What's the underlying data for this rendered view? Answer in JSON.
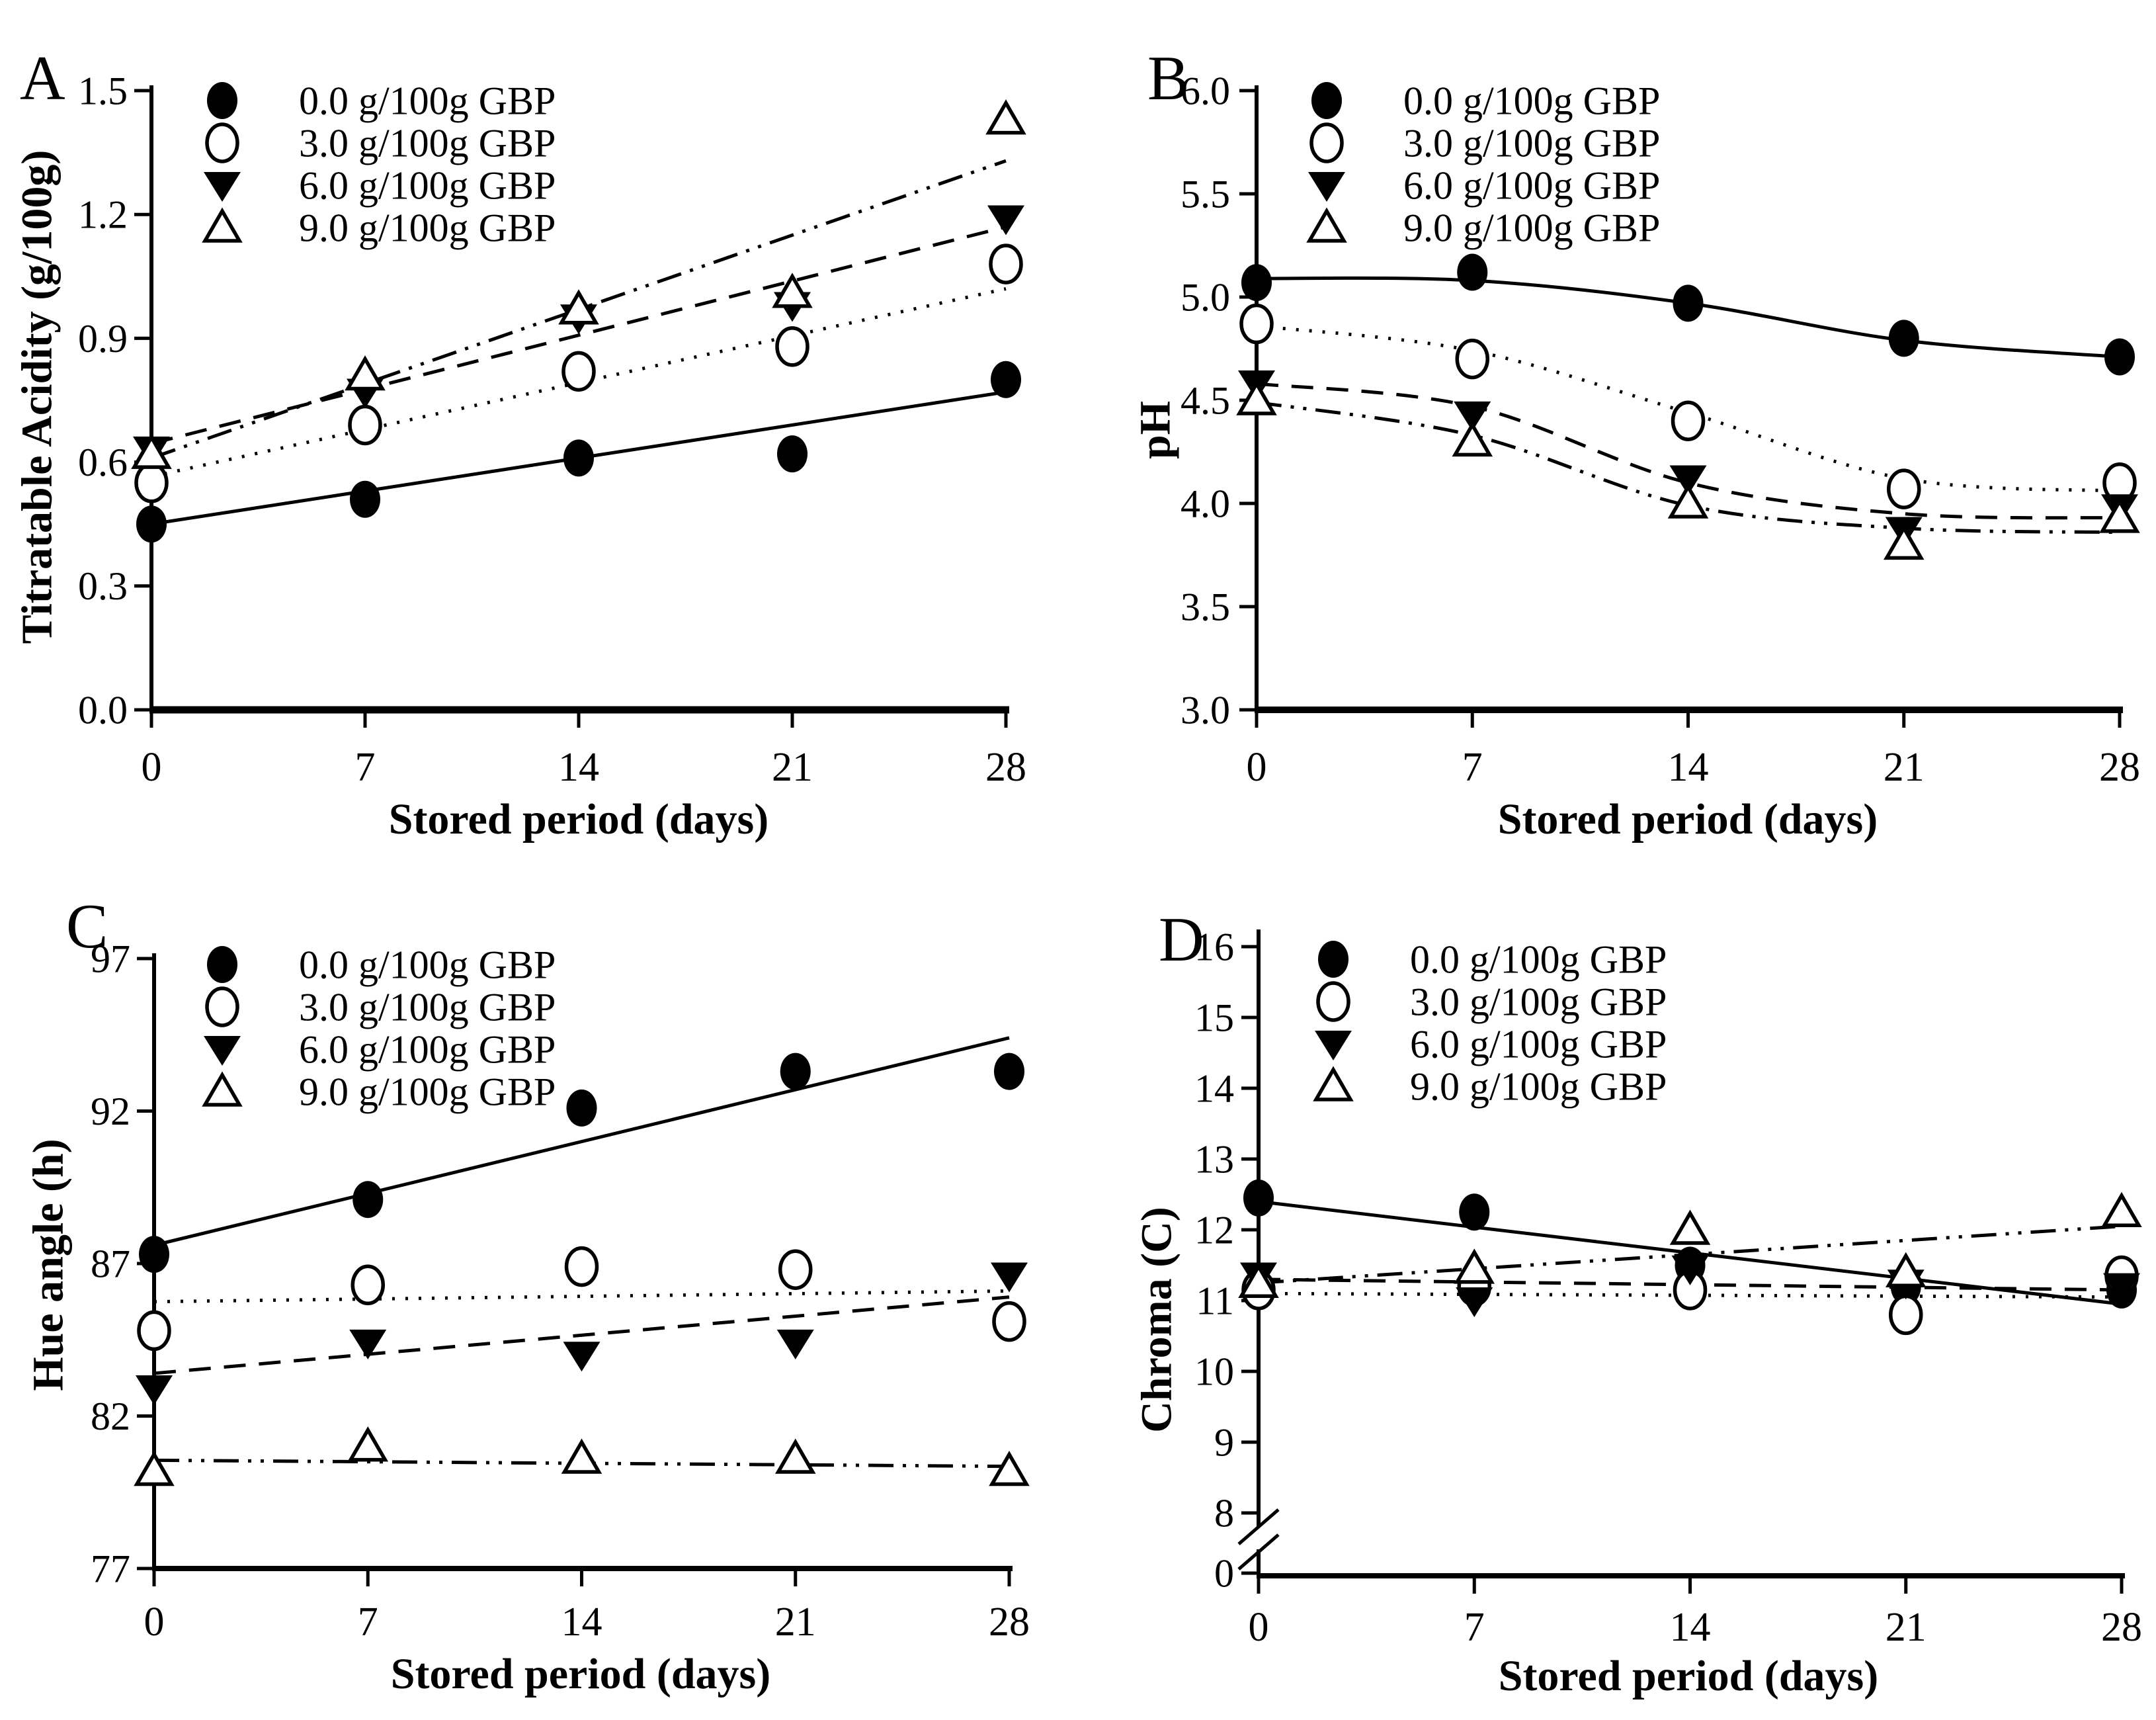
{
  "figure": {
    "background": "#ffffff",
    "ink": "#000000",
    "x_axis_title": "Stored period (days)"
  },
  "chart_data": [
    {
      "type": "scatter",
      "panel": "A",
      "title": "",
      "xlabel": "Stored period (days)",
      "ylabel": "Titratable Acidity (g/100g)",
      "x": [
        0,
        7,
        14,
        21,
        28
      ],
      "x_tick_labels": [
        "0",
        "7",
        "14",
        "21",
        "28"
      ],
      "ylim": [
        0.0,
        1.5
      ],
      "y_ticks": [
        0.0,
        0.3,
        0.6,
        0.9,
        1.2,
        1.5
      ],
      "y_tick_labels": [
        "0.0",
        "0.3",
        "0.6",
        "0.9",
        "1.2",
        "1.5"
      ],
      "grid": false,
      "legend_position": "top-left",
      "series": [
        {
          "name": "0.0 g/100g GBP",
          "marker": "filled-circle",
          "line_style": "solid",
          "fit": "linear",
          "values": [
            0.45,
            0.51,
            0.61,
            0.62,
            0.8
          ],
          "fit_values": [
            0.45,
            0.77
          ]
        },
        {
          "name": "3.0 g/100g GBP",
          "marker": "open-circle",
          "line_style": "dotted",
          "fit": "linear",
          "values": [
            0.55,
            0.69,
            0.82,
            0.88,
            1.08
          ],
          "fit_values": [
            0.565,
            1.02
          ]
        },
        {
          "name": "6.0 g/100g GBP",
          "marker": "filled-triangle-down",
          "line_style": "dashed",
          "fit": "linear",
          "values": [
            0.63,
            0.77,
            0.95,
            0.98,
            1.19
          ],
          "fit_values": [
            0.645,
            1.17
          ]
        },
        {
          "name": "9.0 g/100g GBP",
          "marker": "open-triangle-up",
          "line_style": "dash-dot-dot",
          "fit": "linear",
          "values": [
            0.62,
            0.81,
            0.97,
            1.01,
            1.43
          ],
          "fit_values": [
            0.61,
            1.33
          ]
        }
      ]
    },
    {
      "type": "scatter",
      "panel": "B",
      "title": "",
      "xlabel": "Stored period (days)",
      "ylabel": "pH",
      "x": [
        0,
        7,
        14,
        21,
        28
      ],
      "x_tick_labels": [
        "0",
        "7",
        "14",
        "21",
        "28"
      ],
      "ylim": [
        3.0,
        6.0
      ],
      "y_ticks": [
        3.0,
        3.5,
        4.0,
        4.5,
        5.0,
        5.5,
        6.0
      ],
      "y_tick_labels": [
        "3.0",
        "3.5",
        "4.0",
        "4.5",
        "5.0",
        "5.5",
        "6.0"
      ],
      "grid": false,
      "legend_position": "top-left",
      "series": [
        {
          "name": "0.0 g/100g GBP",
          "marker": "filled-circle",
          "line_style": "solid",
          "fit": "smooth",
          "values": [
            5.07,
            5.12,
            4.97,
            4.8,
            4.71
          ],
          "fit_values": [
            5.09,
            5.08,
            4.97,
            4.79,
            4.71
          ]
        },
        {
          "name": "3.0 g/100g GBP",
          "marker": "open-circle",
          "line_style": "dotted",
          "fit": "smooth",
          "values": [
            4.87,
            4.7,
            4.4,
            4.07,
            4.1
          ],
          "fit_values": [
            4.86,
            4.74,
            4.44,
            4.12,
            4.06
          ]
        },
        {
          "name": "6.0 g/100g GBP",
          "marker": "filled-triangle-down",
          "line_style": "dashed",
          "fit": "smooth",
          "values": [
            4.58,
            4.43,
            4.12,
            3.87,
            3.98
          ],
          "fit_values": [
            4.58,
            4.47,
            4.1,
            3.95,
            3.93
          ]
        },
        {
          "name": "9.0 g/100g GBP",
          "marker": "open-triangle-up",
          "line_style": "dash-dot-dot",
          "fit": "smooth",
          "values": [
            4.5,
            4.3,
            4.0,
            3.8,
            3.93
          ],
          "fit_values": [
            4.49,
            4.33,
            3.99,
            3.88,
            3.86
          ]
        }
      ]
    },
    {
      "type": "scatter",
      "panel": "C",
      "title": "",
      "xlabel": "Stored period (days)",
      "ylabel": "Hue angle (h)",
      "x": [
        0,
        7,
        14,
        21,
        28
      ],
      "x_tick_labels": [
        "0",
        "7",
        "14",
        "21",
        "28"
      ],
      "ylim": [
        77,
        97
      ],
      "y_ticks": [
        77,
        82,
        87,
        92,
        97
      ],
      "y_tick_labels": [
        "77",
        "82",
        "87",
        "92",
        "97"
      ],
      "grid": false,
      "legend_position": "top-left",
      "series": [
        {
          "name": "0.0 g/100g GBP",
          "marker": "filled-circle",
          "line_style": "solid",
          "fit": "linear",
          "values": [
            87.3,
            89.1,
            92.1,
            93.3,
            93.3
          ],
          "fit_values": [
            87.6,
            94.4
          ]
        },
        {
          "name": "3.0 g/100g GBP",
          "marker": "open-circle",
          "line_style": "dotted",
          "fit": "linear",
          "values": [
            84.8,
            86.3,
            86.9,
            86.8,
            85.1
          ],
          "fit_values": [
            85.75,
            86.1
          ]
        },
        {
          "name": "6.0 g/100g GBP",
          "marker": "filled-triangle-down",
          "line_style": "dashed",
          "fit": "linear",
          "values": [
            82.9,
            84.4,
            84.0,
            84.4,
            86.6
          ],
          "fit_values": [
            83.4,
            85.9
          ]
        },
        {
          "name": "9.0 g/100g GBP",
          "marker": "open-triangle-up",
          "line_style": "dash-dot-dot",
          "fit": "linear",
          "values": [
            80.2,
            81.0,
            80.6,
            80.6,
            80.2
          ],
          "fit_values": [
            80.55,
            80.35
          ]
        }
      ]
    },
    {
      "type": "scatter",
      "panel": "D",
      "title": "",
      "xlabel": "Stored period (days)",
      "ylabel": "Chroma (C)",
      "x": [
        0,
        7,
        14,
        21,
        28
      ],
      "x_tick_labels": [
        "0",
        "7",
        "14",
        "21",
        "28"
      ],
      "ylim": [
        8,
        16
      ],
      "y_ticks": [
        8,
        9,
        10,
        11,
        12,
        13,
        14,
        15,
        16
      ],
      "y_tick_labels": [
        "8",
        "9",
        "10",
        "11",
        "12",
        "13",
        "14",
        "15",
        "16"
      ],
      "broken_axis": {
        "lower_tick_value": 0,
        "lower_tick_label": "0"
      },
      "grid": false,
      "legend_position": "top-left",
      "series": [
        {
          "name": "0.0 g/100g GBP",
          "marker": "filled-circle",
          "line_style": "solid",
          "fit": "linear",
          "values": [
            12.45,
            12.25,
            11.5,
            11.2,
            11.15
          ],
          "fit_values": [
            12.4,
            10.95
          ]
        },
        {
          "name": "3.0 g/100g GBP",
          "marker": "open-circle",
          "line_style": "dotted",
          "fit": "linear",
          "values": [
            11.15,
            11.2,
            11.15,
            10.8,
            11.35
          ],
          "fit_values": [
            11.1,
            11.05
          ]
        },
        {
          "name": "6.0 g/100g GBP",
          "marker": "filled-triangle-down",
          "line_style": "dashed",
          "fit": "linear",
          "values": [
            11.35,
            11.0,
            11.45,
            11.25,
            11.2
          ],
          "fit_values": [
            11.3,
            11.15
          ]
        },
        {
          "name": "9.0 g/100g GBP",
          "marker": "open-triangle-up",
          "line_style": "dash-dot-dot",
          "fit": "linear",
          "values": [
            11.25,
            11.45,
            12.0,
            11.4,
            12.25
          ],
          "fit_values": [
            11.25,
            12.05
          ]
        }
      ]
    }
  ]
}
